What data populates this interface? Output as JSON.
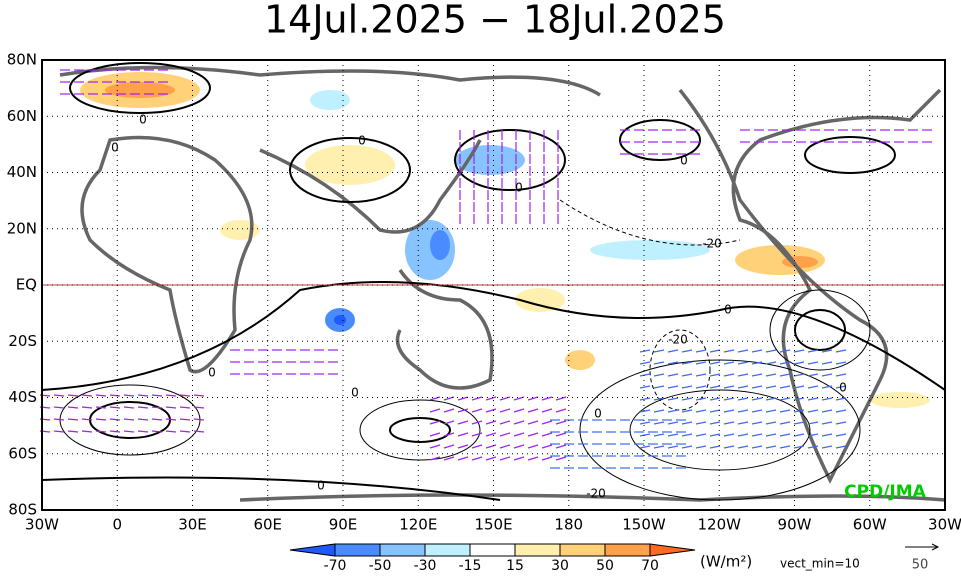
{
  "title": "14Jul.2025 − 18Jul.2025",
  "lat_labels": [
    "80N",
    "60N",
    "40N",
    "20N",
    "EQ",
    "20S",
    "40S",
    "60S",
    "80S"
  ],
  "lon_labels": [
    "30W",
    "0",
    "30E",
    "60E",
    "90E",
    "120E",
    "150E",
    "180",
    "150W",
    "120W",
    "90W",
    "60W",
    "30W"
  ],
  "contour_labels": [
    "0",
    "0",
    "0",
    "0",
    "0",
    "0",
    "0",
    "0",
    "0",
    "0",
    "0",
    "-20",
    "-20",
    "-20"
  ],
  "colorbar": {
    "ticks": [
      -70,
      -50,
      -30,
      -15,
      15,
      30,
      50,
      70
    ],
    "colors": [
      "#1e5aff",
      "#4a8cff",
      "#87c3ff",
      "#bff0ff",
      "#ffffff",
      "#fff0b0",
      "#ffd27a",
      "#ffa04a",
      "#ff6a1e"
    ],
    "unit": "(W/m²)",
    "note": "vect_min=10"
  },
  "reference_vector": {
    "label": "50"
  },
  "credit": "CPD/JMA"
}
